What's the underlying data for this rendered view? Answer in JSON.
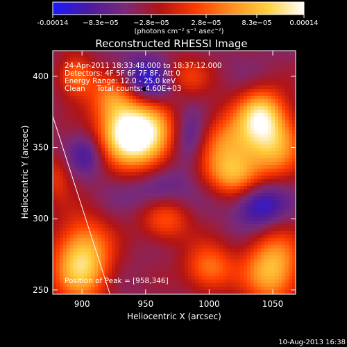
{
  "colorbar": {
    "tick_labels": [
      "-0.00014",
      "−8.3e−05",
      "−2.8e−05",
      "2.8e−05",
      "8.3e−05",
      "0.00014"
    ],
    "units_label": "(photons cm⁻² s⁻¹ asec⁻²)",
    "colors": [
      "#1a1aff",
      "#4a1aa0",
      "#7a2a78",
      "#b31414",
      "#ff3c00",
      "#ff9020",
      "#ffd040",
      "#ffffff"
    ]
  },
  "chart_data": {
    "type": "heatmap",
    "title": "Reconstructed RHESSI Image",
    "xlabel": "Heliocentric X (arcsec)",
    "ylabel": "Heliocentric Y (arcsec)",
    "xlim": [
      877,
      1068
    ],
    "ylim": [
      247,
      418
    ],
    "x_ticks": [
      900,
      950,
      1000,
      1050
    ],
    "y_ticks": [
      250,
      300,
      350,
      400
    ],
    "annotations": [
      "24-Apr-2011 18:33:48.000 to 18:37:12.000",
      "Detectors: 4F 5F 6F 7F 8F, Att 0",
      "Energy Range: 12.0 - 25.0 keV",
      "Clean     Total counts: 4.60E+03"
    ],
    "peak_label": "Position of Peak = [958,346]",
    "peak": [
      958,
      346
    ],
    "limb_line": [
      [
        877,
        372
      ],
      [
        922,
        247
      ]
    ],
    "blobs": [
      {
        "x": 950,
        "y": 358,
        "amp": 1.6,
        "sx": 16,
        "sy": 18
      },
      {
        "x": 930,
        "y": 360,
        "amp": 1.1,
        "sx": 14,
        "sy": 14
      },
      {
        "x": 925,
        "y": 385,
        "amp": 0.9,
        "sx": 14,
        "sy": 12
      },
      {
        "x": 1015,
        "y": 350,
        "amp": 1.0,
        "sx": 18,
        "sy": 18
      },
      {
        "x": 1050,
        "y": 355,
        "amp": 1.2,
        "sx": 16,
        "sy": 18
      },
      {
        "x": 1040,
        "y": 375,
        "amp": 0.9,
        "sx": 12,
        "sy": 12
      },
      {
        "x": 895,
        "y": 400,
        "amp": 0.9,
        "sx": 10,
        "sy": 10
      },
      {
        "x": 900,
        "y": 270,
        "amp": 1.5,
        "sx": 16,
        "sy": 20
      },
      {
        "x": 1050,
        "y": 265,
        "amp": 1.3,
        "sx": 16,
        "sy": 18
      },
      {
        "x": 1000,
        "y": 265,
        "amp": 0.9,
        "sx": 14,
        "sy": 12
      },
      {
        "x": 965,
        "y": 300,
        "amp": 0.8,
        "sx": 14,
        "sy": 12
      },
      {
        "x": 1020,
        "y": 330,
        "amp": 0.7,
        "sx": 14,
        "sy": 10
      },
      {
        "x": 980,
        "y": 400,
        "amp": 0.6,
        "sx": 14,
        "sy": 10
      },
      {
        "x": 950,
        "y": 395,
        "amp": -0.9,
        "sx": 16,
        "sy": 12
      },
      {
        "x": 985,
        "y": 355,
        "amp": -0.6,
        "sx": 10,
        "sy": 14
      },
      {
        "x": 1040,
        "y": 310,
        "amp": -0.8,
        "sx": 14,
        "sy": 12
      },
      {
        "x": 960,
        "y": 320,
        "amp": -0.6,
        "sx": 16,
        "sy": 12
      },
      {
        "x": 905,
        "y": 345,
        "amp": -0.5,
        "sx": 10,
        "sy": 10
      },
      {
        "x": 880,
        "y": 330,
        "amp": 0.5,
        "sx": 8,
        "sy": 12
      }
    ],
    "min_marker": [
      949,
      391
    ]
  },
  "footer": {
    "timestamp": "10-Aug-2013 16:38"
  }
}
